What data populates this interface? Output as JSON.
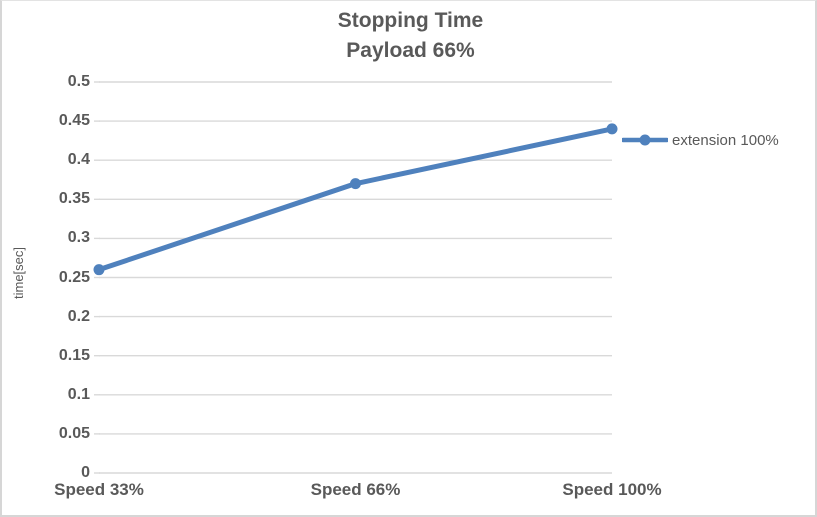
{
  "chart": {
    "title_line1": "Stopping Time",
    "title_line2": "Payload 66%",
    "ylabel": "time[sec]",
    "legend_label": "extension 100%"
  },
  "chart_data": {
    "type": "line",
    "title": "Stopping Time",
    "subtitle": "Payload 66%",
    "categories": [
      "Speed 33%",
      "Speed 66%",
      "Speed 100%"
    ],
    "series": [
      {
        "name": "extension 100%",
        "values": [
          0.26,
          0.37,
          0.44
        ]
      }
    ],
    "xlabel": "",
    "ylabel": "time[sec]",
    "ylim": [
      0,
      0.5
    ],
    "ytick_step": 0.05,
    "ytick_labels": [
      "0",
      "0.05",
      "0.1",
      "0.15",
      "0.2",
      "0.25",
      "0.3",
      "0.35",
      "0.4",
      "0.45",
      "0.5"
    ],
    "grid": true,
    "legend_position": "right",
    "colors": {
      "series": "#4f81bd",
      "grid": "#d9d9d9",
      "text": "#595959"
    }
  }
}
